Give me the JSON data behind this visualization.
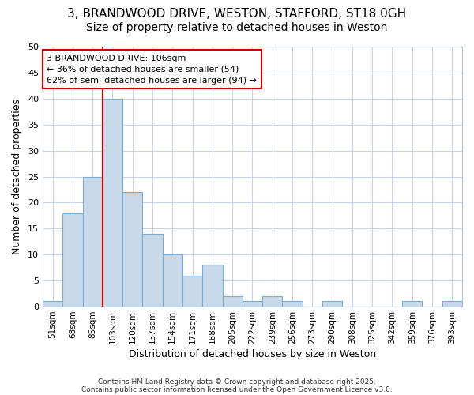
{
  "title1": "3, BRANDWOOD DRIVE, WESTON, STAFFORD, ST18 0GH",
  "title2": "Size of property relative to detached houses in Weston",
  "xlabel": "Distribution of detached houses by size in Weston",
  "ylabel": "Number of detached properties",
  "categories": [
    "51sqm",
    "68sqm",
    "85sqm",
    "103sqm",
    "120sqm",
    "137sqm",
    "154sqm",
    "171sqm",
    "188sqm",
    "205sqm",
    "222sqm",
    "239sqm",
    "256sqm",
    "273sqm",
    "290sqm",
    "308sqm",
    "325sqm",
    "342sqm",
    "359sqm",
    "376sqm",
    "393sqm"
  ],
  "values": [
    1,
    18,
    25,
    40,
    22,
    14,
    10,
    6,
    8,
    2,
    1,
    2,
    1,
    0,
    1,
    0,
    0,
    0,
    1,
    0,
    1
  ],
  "bar_color": "#c8d9ea",
  "bar_edge_color": "#7aadd4",
  "reference_line_color": "#cc0000",
  "annotation_text": "3 BRANDWOOD DRIVE: 106sqm\n← 36% of detached houses are smaller (54)\n62% of semi-detached houses are larger (94) →",
  "annotation_box_edge_color": "#cc0000",
  "ylim": [
    0,
    50
  ],
  "yticks": [
    0,
    5,
    10,
    15,
    20,
    25,
    30,
    35,
    40,
    45,
    50
  ],
  "fig_bg_color": "#ffffff",
  "plot_bg_color": "#ffffff",
  "grid_color": "#c8d4e8",
  "title_fontsize": 11,
  "subtitle_fontsize": 10,
  "footer_line1": "Contains HM Land Registry data © Crown copyright and database right 2025.",
  "footer_line2": "Contains public sector information licensed under the Open Government Licence v3.0."
}
